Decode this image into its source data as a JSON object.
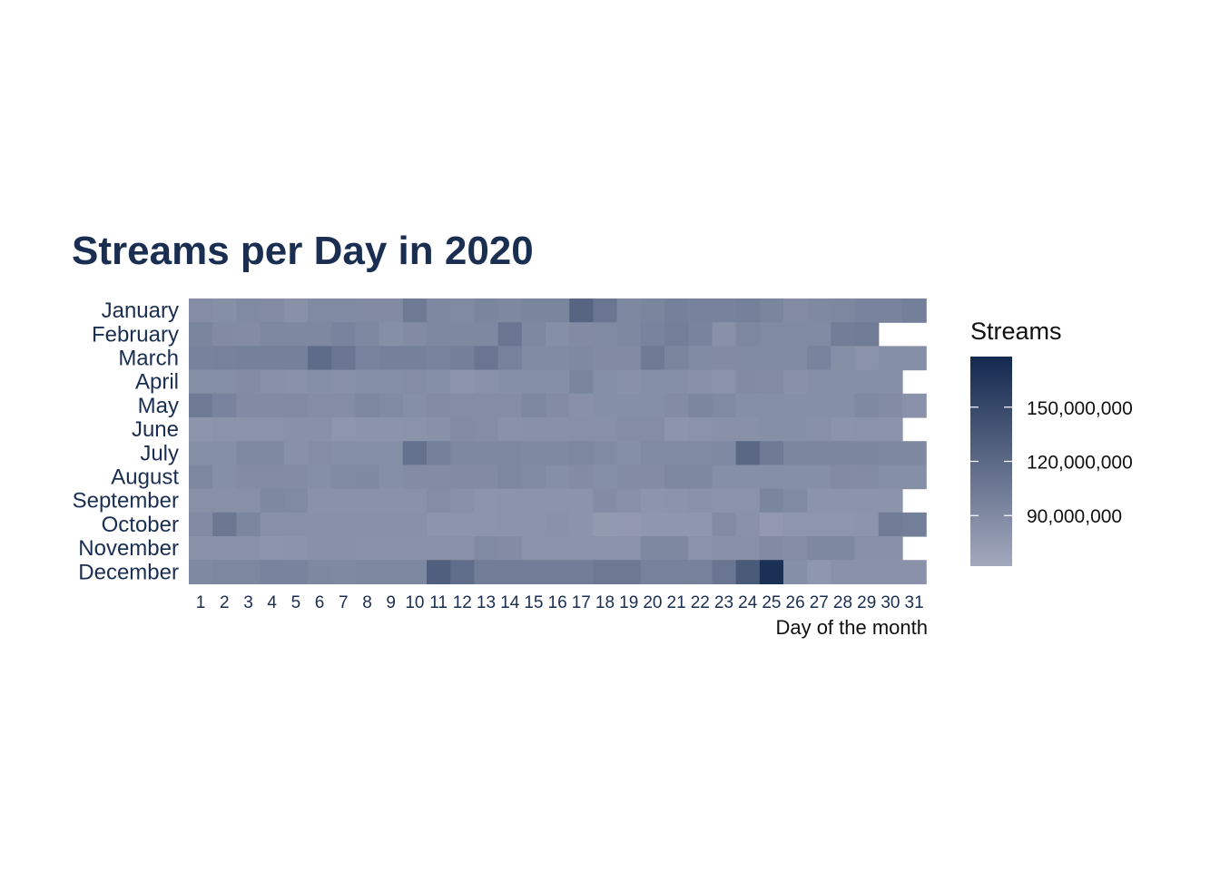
{
  "chart_data": {
    "type": "heatmap",
    "title": "Streams per Day in 2020",
    "xlabel": "Day of the month",
    "ylabel": "",
    "x": [
      "1",
      "2",
      "3",
      "4",
      "5",
      "6",
      "7",
      "8",
      "9",
      "10",
      "11",
      "12",
      "13",
      "14",
      "15",
      "16",
      "17",
      "18",
      "19",
      "20",
      "21",
      "22",
      "23",
      "24",
      "25",
      "26",
      "27",
      "28",
      "29",
      "30",
      "31"
    ],
    "y": [
      "January",
      "February",
      "March",
      "April",
      "May",
      "June",
      "July",
      "August",
      "September",
      "October",
      "November",
      "December"
    ],
    "values": [
      [
        87,
        86,
        90,
        88,
        84,
        90,
        90,
        89,
        89,
        104,
        92,
        90,
        95,
        92,
        95,
        95,
        124,
        108,
        92,
        95,
        99,
        97,
        97,
        99,
        95,
        88,
        91,
        93,
        96,
        96,
        100
      ],
      [
        95,
        89,
        88,
        92,
        92,
        92,
        96,
        92,
        86,
        89,
        92,
        92,
        92,
        108,
        92,
        86,
        89,
        90,
        92,
        96,
        101,
        96,
        84,
        93,
        90,
        90,
        90,
        102,
        103,
        null,
        null
      ],
      [
        97,
        98,
        99,
        99,
        99,
        117,
        108,
        96,
        99,
        99,
        96,
        100,
        108,
        98,
        90,
        90,
        91,
        89,
        89,
        104,
        95,
        90,
        89,
        90,
        90,
        90,
        96,
        86,
        82,
        86,
        86
      ],
      [
        86,
        86,
        88,
        85,
        83,
        86,
        85,
        86,
        86,
        87,
        86,
        80,
        83,
        86,
        86,
        86,
        95,
        86,
        84,
        86,
        86,
        84,
        82,
        89,
        88,
        84,
        86,
        86,
        86,
        86,
        null
      ],
      [
        104,
        96,
        89,
        89,
        89,
        87,
        87,
        93,
        90,
        86,
        88,
        87,
        87,
        87,
        93,
        88,
        84,
        86,
        86,
        86,
        88,
        94,
        90,
        86,
        86,
        86,
        86,
        86,
        91,
        88,
        83
      ],
      [
        80,
        82,
        82,
        82,
        84,
        84,
        79,
        81,
        81,
        82,
        84,
        88,
        87,
        83,
        84,
        84,
        85,
        85,
        87,
        87,
        80,
        82,
        84,
        84,
        86,
        86,
        85,
        81,
        82,
        82,
        null
      ],
      [
        86,
        86,
        91,
        91,
        84,
        87,
        86,
        86,
        86,
        112,
        99,
        93,
        93,
        93,
        91,
        91,
        93,
        90,
        86,
        90,
        90,
        90,
        91,
        121,
        104,
        94,
        94,
        94,
        94,
        92,
        92
      ],
      [
        93,
        86,
        88,
        88,
        88,
        86,
        90,
        91,
        86,
        88,
        88,
        89,
        89,
        93,
        90,
        86,
        88,
        86,
        88,
        88,
        92,
        92,
        86,
        86,
        86,
        86,
        86,
        89,
        88,
        86,
        86
      ],
      [
        85,
        85,
        85,
        92,
        90,
        83,
        83,
        83,
        83,
        83,
        87,
        84,
        80,
        81,
        81,
        81,
        81,
        88,
        84,
        80,
        81,
        83,
        82,
        82,
        95,
        90,
        81,
        81,
        81,
        81,
        null
      ],
      [
        89,
        107,
        94,
        85,
        85,
        85,
        85,
        85,
        85,
        85,
        80,
        80,
        80,
        81,
        81,
        83,
        81,
        76,
        77,
        78,
        78,
        78,
        88,
        83,
        77,
        79,
        79,
        79,
        80,
        103,
        101
      ],
      [
        83,
        83,
        83,
        80,
        82,
        85,
        85,
        83,
        83,
        83,
        83,
        83,
        90,
        88,
        82,
        82,
        82,
        82,
        82,
        92,
        92,
        82,
        85,
        85,
        89,
        87,
        92,
        92,
        85,
        85,
        null
      ],
      [
        91,
        93,
        93,
        96,
        96,
        92,
        91,
        93,
        93,
        93,
        129,
        116,
        102,
        102,
        102,
        102,
        102,
        106,
        106,
        98,
        98,
        98,
        108,
        134,
        172,
        86,
        78,
        83,
        83,
        83,
        83
      ]
    ],
    "color_scale": {
      "low": "#a3a9bd",
      "high": "#14294f"
    },
    "legend": {
      "title": "Streams",
      "ticks": [
        "150,000,000",
        "120,000,000",
        "90,000,000"
      ],
      "tick_values": [
        150,
        120,
        90
      ],
      "range": [
        62,
        178
      ],
      "placement": "right"
    },
    "grid": false
  }
}
